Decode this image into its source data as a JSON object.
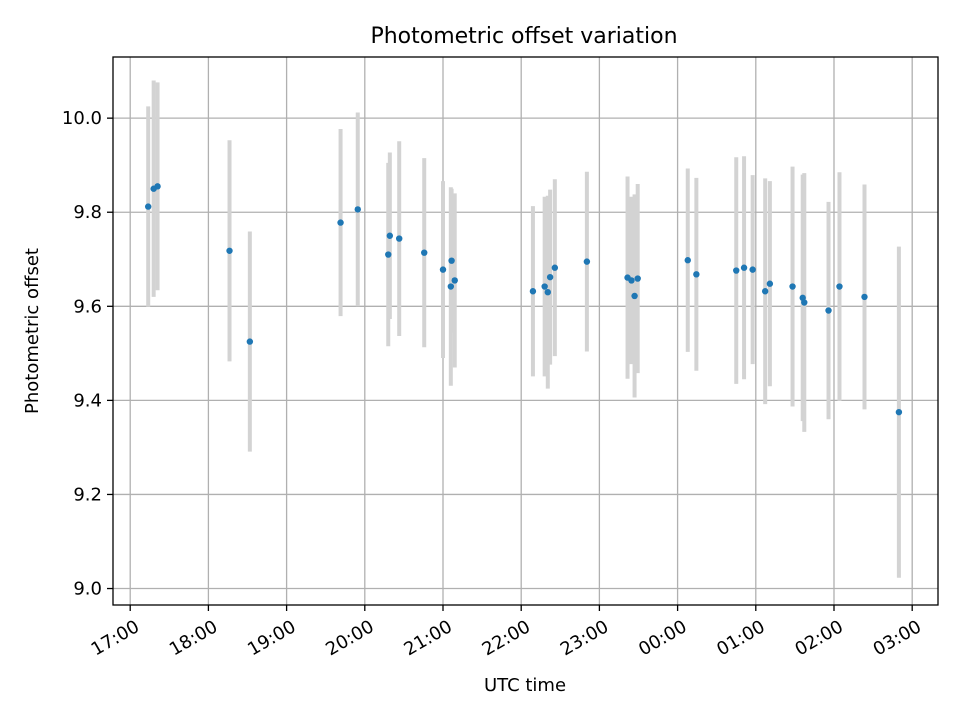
{
  "chart_data": {
    "type": "scatter",
    "title": "Photometric offset variation",
    "xlabel": "UTC time",
    "ylabel": "Photometric offset",
    "x_unit": "UTC time of day (hours; values ≥ 24 fall after midnight)",
    "xlim": [
      16.78,
      27.33
    ],
    "ylim": [
      8.965,
      10.13
    ],
    "xticks": [
      {
        "h": 17,
        "label": "17:00"
      },
      {
        "h": 18,
        "label": "18:00"
      },
      {
        "h": 19,
        "label": "19:00"
      },
      {
        "h": 20,
        "label": "20:00"
      },
      {
        "h": 21,
        "label": "21:00"
      },
      {
        "h": 22,
        "label": "22:00"
      },
      {
        "h": 23,
        "label": "23:00"
      },
      {
        "h": 24,
        "label": "00:00"
      },
      {
        "h": 25,
        "label": "01:00"
      },
      {
        "h": 26,
        "label": "02:00"
      },
      {
        "h": 27,
        "label": "03:00"
      }
    ],
    "yticks": [
      {
        "v": 9.0,
        "label": "9.0"
      },
      {
        "v": 9.2,
        "label": "9.2"
      },
      {
        "v": 9.4,
        "label": "9.4"
      },
      {
        "v": 9.6,
        "label": "9.6"
      },
      {
        "v": 9.8,
        "label": "9.8"
      },
      {
        "v": 10.0,
        "label": "10.0"
      }
    ],
    "grid": true,
    "colors": {
      "points": "#1f77b4",
      "errorbars": "#d3d3d3",
      "grid": "#b0b0b0"
    },
    "points": [
      {
        "t": 17.23,
        "y": 9.812,
        "err": 0.213
      },
      {
        "t": 17.3,
        "y": 9.85,
        "err": 0.23
      },
      {
        "t": 17.35,
        "y": 9.855,
        "err": 0.221
      },
      {
        "t": 18.27,
        "y": 9.718,
        "err": 0.235
      },
      {
        "t": 18.53,
        "y": 9.525,
        "err": 0.234
      },
      {
        "t": 19.69,
        "y": 9.778,
        "err": 0.199
      },
      {
        "t": 19.91,
        "y": 9.806,
        "err": 0.206
      },
      {
        "t": 20.3,
        "y": 9.71,
        "err": 0.195
      },
      {
        "t": 20.32,
        "y": 9.75,
        "err": 0.177
      },
      {
        "t": 20.44,
        "y": 9.744,
        "err": 0.207
      },
      {
        "t": 20.76,
        "y": 9.714,
        "err": 0.201
      },
      {
        "t": 21.0,
        "y": 9.678,
        "err": 0.188
      },
      {
        "t": 21.1,
        "y": 9.642,
        "err": 0.211
      },
      {
        "t": 21.11,
        "y": 9.697,
        "err": 0.153
      },
      {
        "t": 21.15,
        "y": 9.655,
        "err": 0.185
      },
      {
        "t": 22.15,
        "y": 9.632,
        "err": 0.181
      },
      {
        "t": 22.3,
        "y": 9.642,
        "err": 0.191
      },
      {
        "t": 22.34,
        "y": 9.63,
        "err": 0.205
      },
      {
        "t": 22.37,
        "y": 9.662,
        "err": 0.186
      },
      {
        "t": 22.43,
        "y": 9.682,
        "err": 0.188
      },
      {
        "t": 22.84,
        "y": 9.695,
        "err": 0.191
      },
      {
        "t": 23.36,
        "y": 9.661,
        "err": 0.215
      },
      {
        "t": 23.41,
        "y": 9.655,
        "err": 0.178
      },
      {
        "t": 23.45,
        "y": 9.622,
        "err": 0.216
      },
      {
        "t": 23.49,
        "y": 9.659,
        "err": 0.201
      },
      {
        "t": 24.13,
        "y": 9.698,
        "err": 0.195
      },
      {
        "t": 24.24,
        "y": 9.668,
        "err": 0.205
      },
      {
        "t": 24.75,
        "y": 9.676,
        "err": 0.241
      },
      {
        "t": 24.85,
        "y": 9.682,
        "err": 0.237
      },
      {
        "t": 24.96,
        "y": 9.678,
        "err": 0.201
      },
      {
        "t": 25.12,
        "y": 9.632,
        "err": 0.24
      },
      {
        "t": 25.18,
        "y": 9.648,
        "err": 0.218
      },
      {
        "t": 25.47,
        "y": 9.642,
        "err": 0.255
      },
      {
        "t": 25.6,
        "y": 9.618,
        "err": 0.262
      },
      {
        "t": 25.62,
        "y": 9.608,
        "err": 0.275
      },
      {
        "t": 25.93,
        "y": 9.591,
        "err": 0.231
      },
      {
        "t": 26.07,
        "y": 9.642,
        "err": 0.243
      },
      {
        "t": 26.39,
        "y": 9.62,
        "err": 0.239
      },
      {
        "t": 26.83,
        "y": 9.375,
        "err": 0.352
      }
    ]
  }
}
